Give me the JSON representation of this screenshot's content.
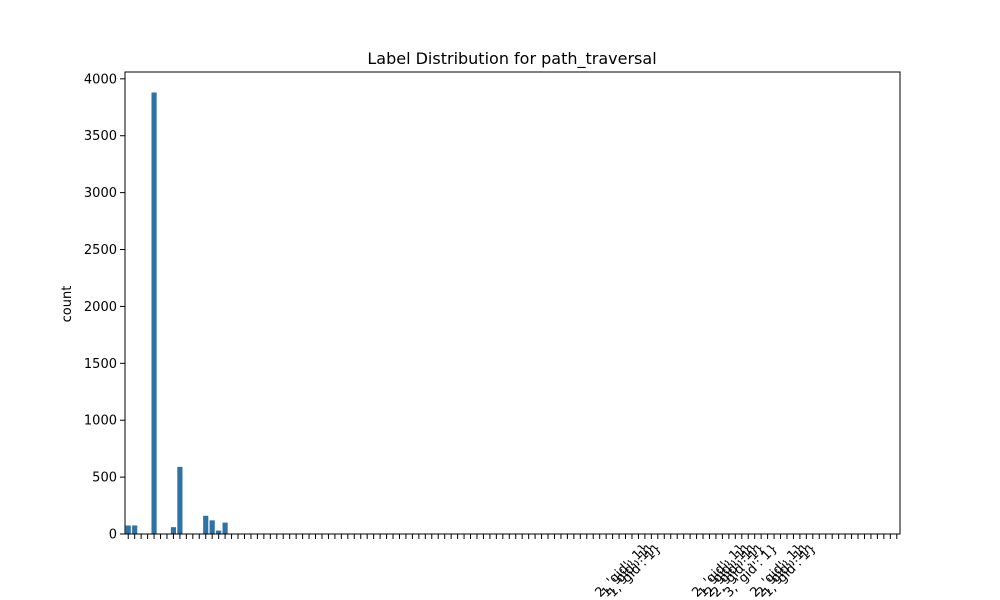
{
  "chart_data": {
    "type": "bar",
    "title": "Label Distribution for path_traversal",
    "xlabel": "",
    "ylabel": "count",
    "ylim": [
      0,
      4060
    ],
    "yticks": [
      0,
      500,
      1000,
      1500,
      2000,
      2500,
      3000,
      3500,
      4000
    ],
    "grid": false,
    "legend": "none",
    "bar_color": "#2f72a5",
    "categories": [
      "",
      "",
      "",
      "",
      "",
      "",
      "",
      "",
      "",
      "",
      "",
      "",
      "",
      "",
      "",
      "",
      "",
      "",
      "",
      "",
      "",
      "",
      "",
      "",
      "",
      "",
      "",
      "",
      "",
      "",
      "",
      "",
      "",
      "",
      "",
      "",
      "",
      "",
      "",
      "",
      "",
      "",
      "",
      "",
      "",
      "",
      "",
      "",
      "",
      "",
      "",
      "",
      "",
      "",
      "",
      "",
      "",
      "",
      "",
      "",
      "",
      "",
      "",
      "",
      "",
      "",
      "",
      "",
      "",
      "",
      "",
      "",
      "",
      "",
      "",
      "",
      "",
      "",
      "",
      "",
      "2, 'gid': 1}",
      "1, 'gid': 1}",
      "1, 'gid': 1}",
      "",
      "",
      "",
      "",
      "",
      "",
      "",
      "",
      "",
      "",
      "",
      "",
      "2, 'gid': 1}",
      "1, 'gid': 1}",
      "2, 'gid': 1}",
      "2, 'gid': 1}",
      "",
      "3, 'gid': 1}",
      "",
      "",
      "",
      "2, 'gid': 1}",
      "2, 'gid': 1}",
      "1, 'gid': 1}",
      "",
      "",
      "",
      "",
      "",
      "",
      "",
      "",
      "",
      "",
      "",
      "",
      ""
    ],
    "values": [
      75,
      75,
      0,
      0,
      3880,
      0,
      0,
      60,
      590,
      0,
      0,
      0,
      160,
      120,
      30,
      100,
      0,
      0,
      0,
      0,
      0,
      0,
      0,
      0,
      0,
      0,
      0,
      0,
      0,
      0,
      0,
      0,
      0,
      0,
      0,
      0,
      0,
      0,
      0,
      0,
      0,
      0,
      0,
      0,
      0,
      0,
      0,
      0,
      0,
      0,
      0,
      0,
      0,
      0,
      0,
      0,
      0,
      0,
      0,
      0,
      0,
      0,
      0,
      0,
      0,
      0,
      0,
      0,
      0,
      0,
      0,
      0,
      0,
      0,
      0,
      0,
      0,
      0,
      0,
      0,
      0,
      0,
      0,
      0,
      0,
      0,
      0,
      0,
      0,
      0,
      0,
      0,
      0,
      0,
      0,
      0,
      0,
      0,
      0,
      0,
      0,
      0,
      0,
      0,
      0,
      0,
      0,
      0,
      0,
      0,
      0,
      0,
      0,
      0,
      0,
      0,
      0,
      0,
      0,
      0
    ]
  }
}
